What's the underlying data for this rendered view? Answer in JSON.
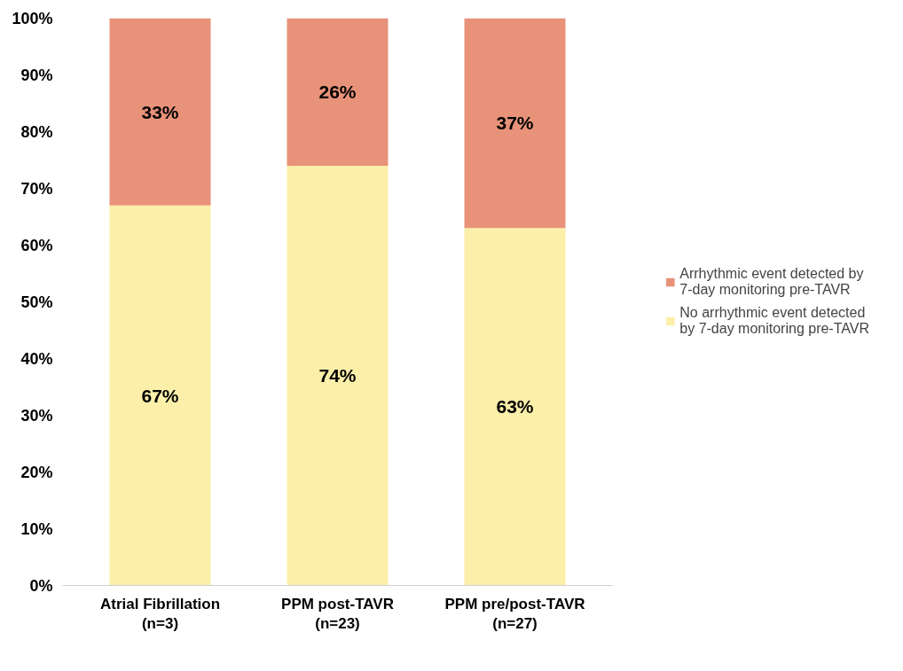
{
  "chart_data": {
    "type": "bar",
    "stacked": true,
    "categories": [
      "Atrial Fibrillation\n(n=3)",
      "PPM post-TAVR\n(n=23)",
      "PPM pre/post-TAVR\n(n=27)"
    ],
    "series": [
      {
        "name": "No arrhythmic event detected\nby 7-day monitoring pre-TAVR",
        "color": "#fbefaa",
        "values": [
          67,
          74,
          63
        ],
        "value_labels": [
          "67%",
          "74%",
          "63%"
        ]
      },
      {
        "name": "Arrhythmic event detected by\n7-day monitoring pre-TAVR",
        "color": "#e8927a",
        "values": [
          33,
          26,
          37
        ],
        "value_labels": [
          "33%",
          "26%",
          "37%"
        ]
      }
    ],
    "ylim": [
      0,
      100
    ],
    "yticks": [
      {
        "value": 0,
        "label": "0%"
      },
      {
        "value": 10,
        "label": "10%"
      },
      {
        "value": 20,
        "label": "20%"
      },
      {
        "value": 30,
        "label": "30%"
      },
      {
        "value": 40,
        "label": "40%"
      },
      {
        "value": 50,
        "label": "50%"
      },
      {
        "value": 60,
        "label": "60%"
      },
      {
        "value": 70,
        "label": "70%"
      },
      {
        "value": 80,
        "label": "80%"
      },
      {
        "value": 90,
        "label": "90%"
      },
      {
        "value": 100,
        "label": "100%"
      }
    ],
    "legend": "right",
    "grid": false
  }
}
